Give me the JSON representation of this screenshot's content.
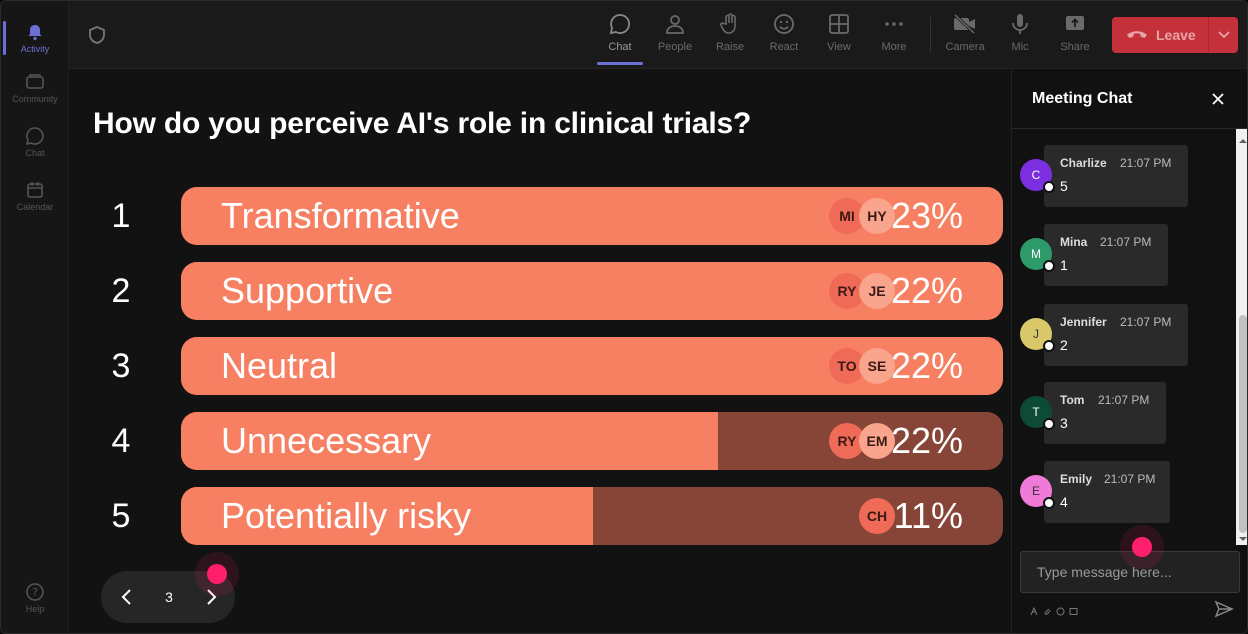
{
  "rail": {
    "items": [
      {
        "label": "Activity",
        "icon": "bell-icon",
        "active": true
      },
      {
        "label": "Community",
        "icon": "community-icon"
      },
      {
        "label": "Chat",
        "icon": "chat-icon"
      },
      {
        "label": "Calendar",
        "icon": "calendar-icon"
      }
    ],
    "help_label": "Help"
  },
  "toolbar": {
    "buttons": [
      {
        "label": "Chat",
        "icon": "chat-icon",
        "active": true
      },
      {
        "label": "People",
        "icon": "people-icon"
      },
      {
        "label": "Raise",
        "icon": "raise-hand-icon"
      },
      {
        "label": "React",
        "icon": "smiley-icon"
      },
      {
        "label": "View",
        "icon": "grid-icon"
      },
      {
        "label": "More",
        "icon": "more-icon"
      },
      {
        "label": "Camera",
        "icon": "camera-off-icon"
      },
      {
        "label": "Mic",
        "icon": "mic-icon"
      },
      {
        "label": "Share",
        "icon": "share-icon"
      }
    ],
    "leave_label": "Leave"
  },
  "poll": {
    "question": "How do you perceive AI's role in clinical trials?",
    "options": [
      {
        "num": "1",
        "label": "Transformative",
        "pct": "23%",
        "fill": 1.0,
        "avatars": [
          "MI",
          "HY"
        ]
      },
      {
        "num": "2",
        "label": "Supportive",
        "pct": "22%",
        "fill": 1.0,
        "avatars": [
          "RY",
          "JE"
        ]
      },
      {
        "num": "3",
        "label": "Neutral",
        "pct": "22%",
        "fill": 1.0,
        "avatars": [
          "TO",
          "SE"
        ]
      },
      {
        "num": "4",
        "label": "Unnecessary",
        "pct": "22%",
        "fill": 0.653,
        "avatars": [
          "RY",
          "EM"
        ]
      },
      {
        "num": "5",
        "label": "Potentially risky",
        "pct": "11%",
        "fill": 0.501,
        "avatars": [
          "CH"
        ]
      }
    ],
    "page": "3",
    "colors": {
      "fill": "#f68061",
      "track": "#864536"
    }
  },
  "chat": {
    "title": "Meeting Chat",
    "messages": [
      {
        "initial": "C",
        "name": "Charlize",
        "time": "21:07 PM",
        "text": "5",
        "color": "#7b2fe0",
        "fg": "#fff"
      },
      {
        "initial": "M",
        "name": "Mina",
        "time": "21:07 PM",
        "text": "1",
        "color": "#2e9a6a",
        "fg": "#fff"
      },
      {
        "initial": "J",
        "name": "Jennifer",
        "time": "21:07 PM",
        "text": "2",
        "color": "#d8c86a",
        "fg": "#333"
      },
      {
        "initial": "T",
        "name": "Tom",
        "time": "21:07 PM",
        "text": "3",
        "color": "#0e4a38",
        "fg": "#fff"
      },
      {
        "initial": "E",
        "name": "Emily",
        "time": "21:07 PM",
        "text": "4",
        "color": "#f07ad8",
        "fg": "#333"
      }
    ],
    "input_placeholder": "Type message here..."
  }
}
